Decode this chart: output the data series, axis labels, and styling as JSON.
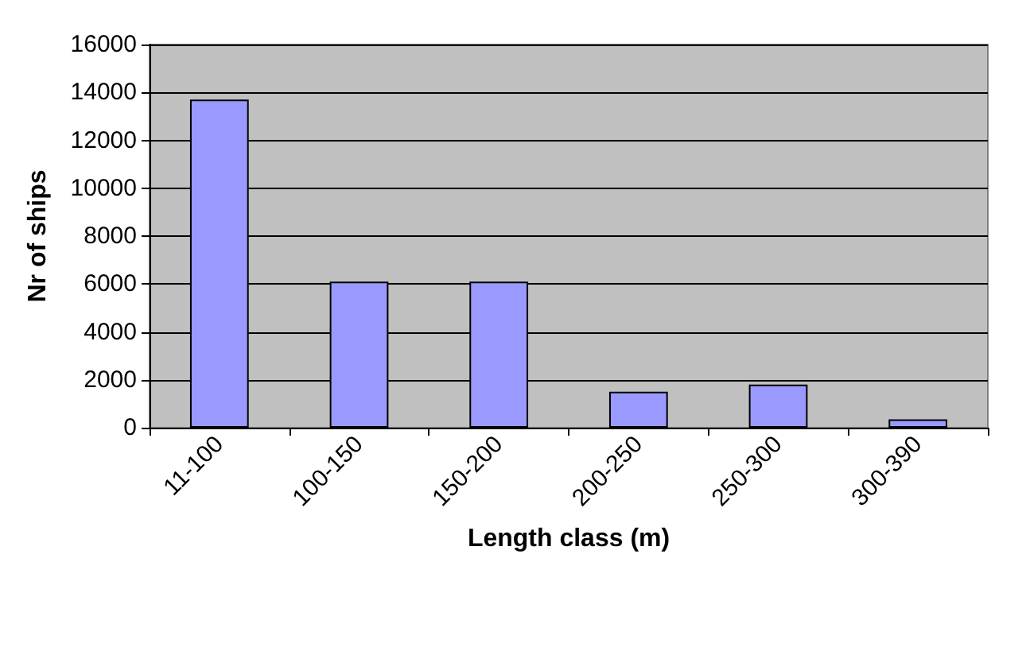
{
  "chart_data": {
    "type": "bar",
    "xlabel": "Length class (m)",
    "ylabel": "Nr of ships",
    "categories": [
      "11-100",
      "100-150",
      "150-200",
      "200-250",
      "250-300",
      "300-390"
    ],
    "values": [
      13700,
      6100,
      6100,
      1500,
      1800,
      350
    ],
    "color": "#9999ff",
    "ylim": [
      0,
      16000
    ],
    "yticks": [
      0,
      2000,
      4000,
      6000,
      8000,
      10000,
      12000,
      14000,
      16000
    ],
    "grid": "y"
  }
}
